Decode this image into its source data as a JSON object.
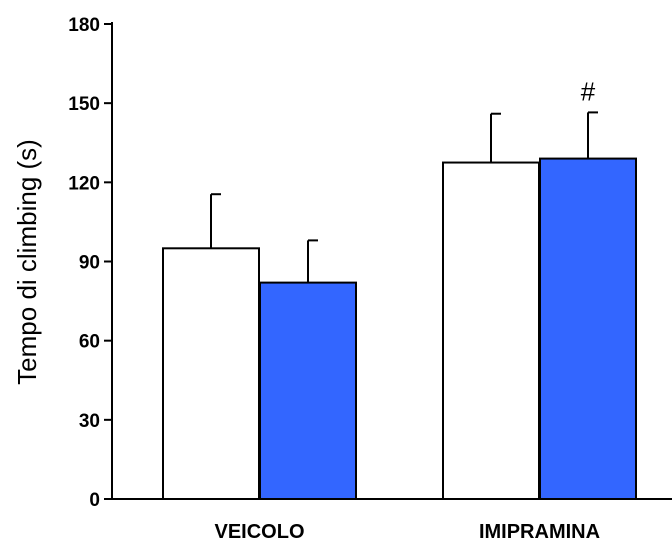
{
  "chart_data": {
    "type": "bar",
    "categories": [
      "VEICOLO",
      "IMIPRAMINA"
    ],
    "ylabel": "Tempo di climbing (s)",
    "xlabel": "",
    "ylim": [
      0,
      180
    ],
    "yticks": [
      0,
      30,
      60,
      90,
      120,
      150,
      180
    ],
    "grid": false,
    "legend": "none",
    "series": [
      {
        "color": "#ffffff",
        "values": [
          95,
          127.5
        ],
        "errors": [
          20.5,
          18.5
        ]
      },
      {
        "color": "#3366ff",
        "values": [
          82,
          129
        ],
        "errors": [
          16,
          17.5
        ]
      }
    ],
    "annotations": [
      {
        "text": "#",
        "category": "IMIPRAMINA",
        "series": 1
      }
    ]
  }
}
